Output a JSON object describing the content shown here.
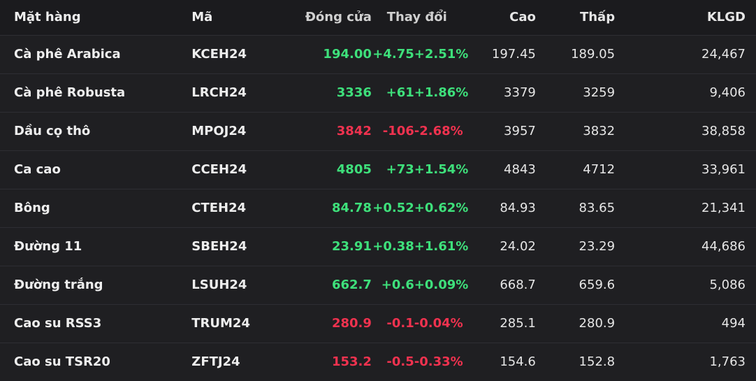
{
  "colors": {
    "up": "#3ee07b",
    "down": "#f0324f",
    "background": "#1f1f22"
  },
  "columns": {
    "name": "Mặt hàng",
    "code": "Mã",
    "close": "Đóng cửa",
    "change": "Thay đổi",
    "high": "Cao",
    "low": "Thấp",
    "volume": "KLGD"
  },
  "rows": [
    {
      "name": "Cà phê Arabica",
      "code": "KCEH24",
      "close": "194.00",
      "change": "+4.75",
      "pct": "+2.51%",
      "high": "197.45",
      "low": "189.05",
      "volume": "24,467",
      "direction": "up"
    },
    {
      "name": "Cà phê Robusta",
      "code": "LRCH24",
      "close": "3336",
      "change": "+61",
      "pct": "+1.86%",
      "high": "3379",
      "low": "3259",
      "volume": "9,406",
      "direction": "up"
    },
    {
      "name": "Dầu cọ thô",
      "code": "MPOJ24",
      "close": "3842",
      "change": "-106",
      "pct": "-2.68%",
      "high": "3957",
      "low": "3832",
      "volume": "38,858",
      "direction": "down"
    },
    {
      "name": "Ca cao",
      "code": "CCEH24",
      "close": "4805",
      "change": "+73",
      "pct": "+1.54%",
      "high": "4843",
      "low": "4712",
      "volume": "33,961",
      "direction": "up"
    },
    {
      "name": "Bông",
      "code": "CTEH24",
      "close": "84.78",
      "change": "+0.52",
      "pct": "+0.62%",
      "high": "84.93",
      "low": "83.65",
      "volume": "21,341",
      "direction": "up"
    },
    {
      "name": "Đường 11",
      "code": "SBEH24",
      "close": "23.91",
      "change": "+0.38",
      "pct": "+1.61%",
      "high": "24.02",
      "low": "23.29",
      "volume": "44,686",
      "direction": "up"
    },
    {
      "name": "Đường trắng",
      "code": "LSUH24",
      "close": "662.7",
      "change": "+0.6",
      "pct": "+0.09%",
      "high": "668.7",
      "low": "659.6",
      "volume": "5,086",
      "direction": "up"
    },
    {
      "name": "Cao su RSS3",
      "code": "TRUM24",
      "close": "280.9",
      "change": "-0.1",
      "pct": "-0.04%",
      "high": "285.1",
      "low": "280.9",
      "volume": "494",
      "direction": "down"
    },
    {
      "name": "Cao su TSR20",
      "code": "ZFTJ24",
      "close": "153.2",
      "change": "-0.5",
      "pct": "-0.33%",
      "high": "154.6",
      "low": "152.8",
      "volume": "1,763",
      "direction": "down"
    }
  ]
}
